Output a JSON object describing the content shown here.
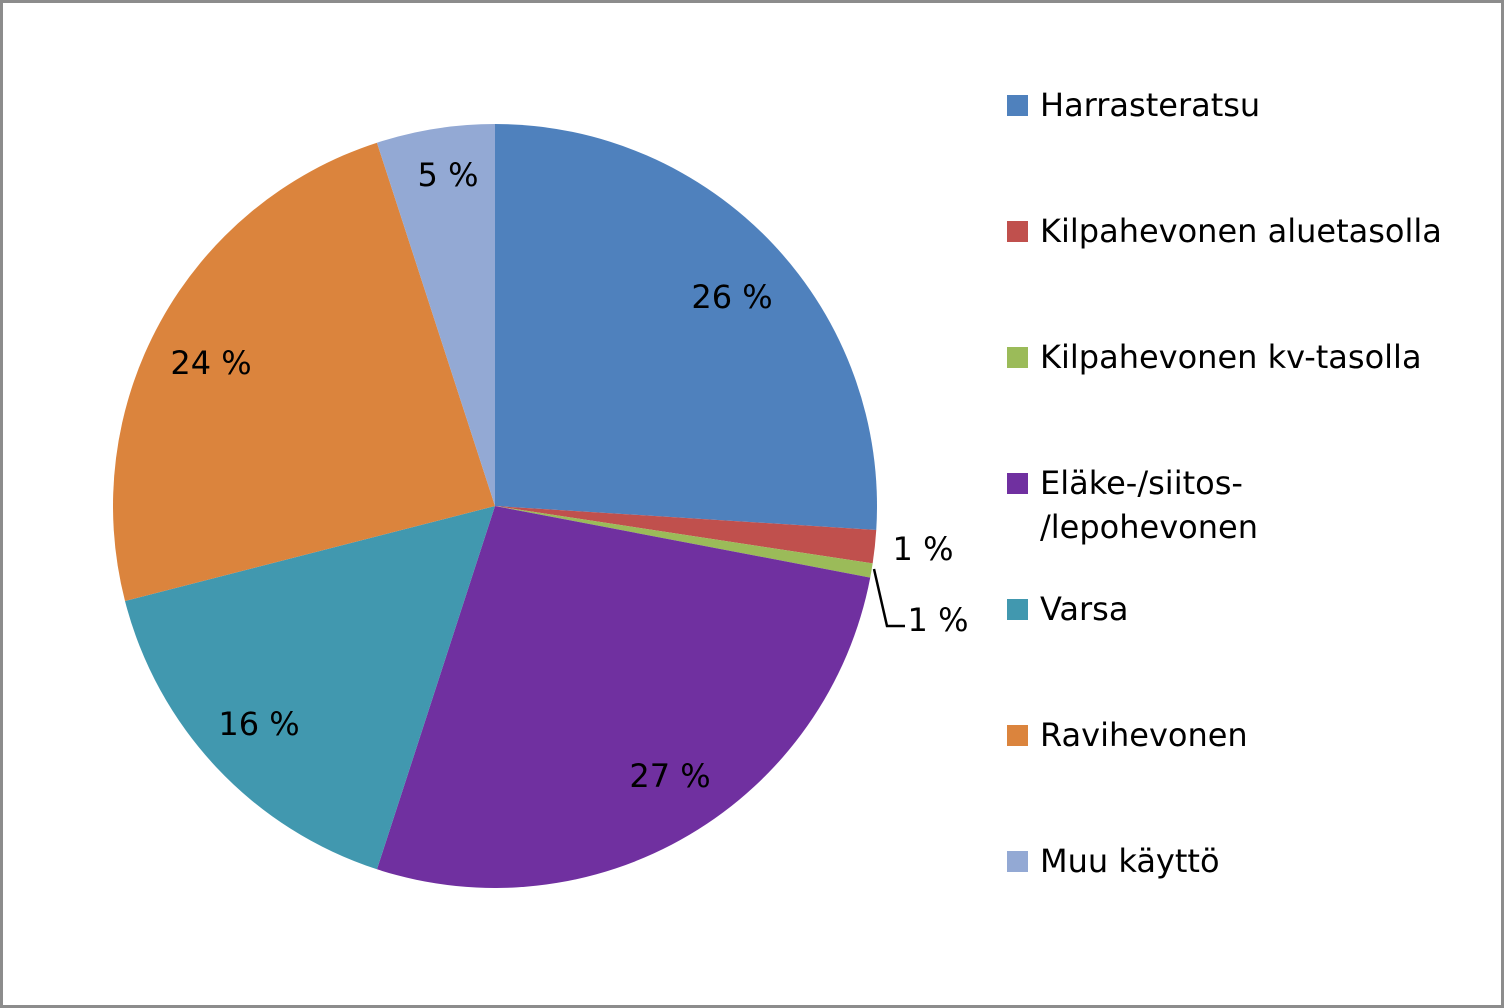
{
  "chart_data": {
    "type": "pie",
    "categories": [
      "Harrasteratsu",
      "Kilpahevonen aluetasolla",
      "Kilpahevonen kv-tasolla",
      "Eläke-/siitos-\n/lepohevonen",
      "Varsa",
      "Ravihevonen",
      "Muu käyttö"
    ],
    "values": [
      26,
      1.4,
      0.6,
      27,
      16,
      24,
      5
    ],
    "data_labels": [
      "26 %",
      "1 %",
      "1 %",
      "27 %",
      "16 %",
      "24 %",
      "5 %"
    ],
    "colors": [
      "#4f81bd",
      "#c0504d",
      "#9bbb59",
      "#7030a0",
      "#4198af",
      "#db843d",
      "#93a9d4"
    ],
    "legend_position": "right",
    "title": ""
  }
}
